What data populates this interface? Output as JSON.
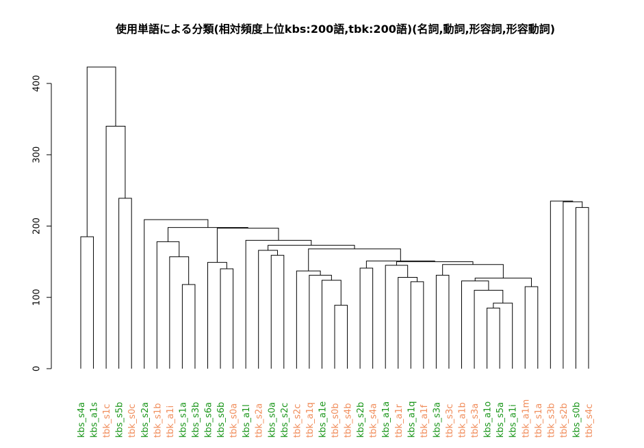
{
  "chart_data": {
    "type": "dendrogram",
    "title": "使用単語による分類(相対頻度上位kbs:200語,tbk:200語)(名詞,動詞,形容詞,形容動詞)",
    "ylim": [
      0,
      420
    ],
    "yticks": [
      0,
      100,
      200,
      300,
      400
    ],
    "colors": {
      "kbs": "#1a961a",
      "tbk": "#f08c5a"
    },
    "leaves": [
      {
        "label": "kbs_s4a",
        "group": "kbs"
      },
      {
        "label": "kbs_a1s",
        "group": "kbs"
      },
      {
        "label": "tbk_s1c",
        "group": "tbk"
      },
      {
        "label": "kbs_s5b",
        "group": "kbs"
      },
      {
        "label": "tbk_s0c",
        "group": "tbk"
      },
      {
        "label": "kbs_s2a",
        "group": "kbs"
      },
      {
        "label": "tbk_s1b",
        "group": "tbk"
      },
      {
        "label": "tbk_a1i",
        "group": "tbk"
      },
      {
        "label": "kbs_s1a",
        "group": "kbs"
      },
      {
        "label": "kbs_s3b",
        "group": "kbs"
      },
      {
        "label": "kbs_s6a",
        "group": "kbs"
      },
      {
        "label": "kbs_s6b",
        "group": "kbs"
      },
      {
        "label": "tbk_s0a",
        "group": "tbk"
      },
      {
        "label": "kbs_a1l",
        "group": "kbs"
      },
      {
        "label": "tbk_s2a",
        "group": "tbk"
      },
      {
        "label": "kbs_s0a",
        "group": "kbs"
      },
      {
        "label": "kbs_s2c",
        "group": "kbs"
      },
      {
        "label": "tbk_s2c",
        "group": "tbk"
      },
      {
        "label": "tbk_a1q",
        "group": "tbk"
      },
      {
        "label": "kbs_a1e",
        "group": "kbs"
      },
      {
        "label": "tbk_s0b",
        "group": "tbk"
      },
      {
        "label": "tbk_s4b",
        "group": "tbk"
      },
      {
        "label": "kbs_s2b",
        "group": "kbs"
      },
      {
        "label": "tbk_s4a",
        "group": "tbk"
      },
      {
        "label": "kbs_a1a",
        "group": "kbs"
      },
      {
        "label": "tbk_a1r",
        "group": "tbk"
      },
      {
        "label": "kbs_a1q",
        "group": "kbs"
      },
      {
        "label": "tbk_a1f",
        "group": "tbk"
      },
      {
        "label": "kbs_s3a",
        "group": "kbs"
      },
      {
        "label": "tbk_s3c",
        "group": "tbk"
      },
      {
        "label": "tbk_a1b",
        "group": "tbk"
      },
      {
        "label": "tbk_s3a",
        "group": "tbk"
      },
      {
        "label": "kbs_a1o",
        "group": "kbs"
      },
      {
        "label": "kbs_s5a",
        "group": "kbs"
      },
      {
        "label": "kbs_a1i",
        "group": "kbs"
      },
      {
        "label": "tbk_a1m",
        "group": "tbk"
      },
      {
        "label": "tbk_s1a",
        "group": "tbk"
      },
      {
        "label": "tbk_s3b",
        "group": "tbk"
      },
      {
        "label": "tbk_s2b",
        "group": "tbk"
      },
      {
        "label": "kbs_s0b",
        "group": "kbs"
      },
      {
        "label": "tbk_s4c",
        "group": "tbk"
      }
    ],
    "merges": [
      [
        1,
        2,
        185
      ],
      [
        7,
        8,
        178
      ],
      [
        9,
        10,
        118
      ],
      [
        11,
        12,
        149
      ],
      [
        12,
        13,
        140
      ],
      [
        15,
        16,
        166
      ],
      [
        16,
        17,
        159
      ],
      [
        18,
        19,
        137
      ],
      [
        19,
        20,
        131
      ],
      [
        20,
        21,
        124
      ],
      [
        21,
        22,
        89
      ],
      [
        23,
        24,
        141
      ],
      [
        25,
        26,
        145
      ],
      [
        26,
        27,
        128
      ],
      [
        27,
        28,
        122
      ],
      [
        29,
        30,
        131
      ],
      [
        30,
        31,
        146
      ],
      [
        31,
        32,
        123
      ],
      [
        32,
        33,
        110
      ],
      [
        33,
        34,
        85
      ],
      [
        34,
        35,
        92
      ],
      [
        35,
        36,
        127
      ],
      [
        36,
        37,
        115
      ],
      [
        39,
        40,
        234
      ],
      [
        40,
        41,
        226
      ],
      [
        4,
        5,
        239
      ],
      [
        6,
        7,
        209
      ],
      [
        8,
        9,
        157
      ],
      [
        10,
        11,
        198
      ],
      [
        13,
        14,
        197
      ],
      [
        14,
        15,
        180
      ],
      [
        17,
        18,
        173
      ],
      [
        22,
        23,
        168
      ],
      [
        24,
        25,
        151
      ],
      [
        28,
        29,
        150
      ],
      [
        38,
        39,
        235
      ],
      [
        3,
        4,
        340
      ],
      [
        2,
        3,
        423
      ]
    ]
  }
}
